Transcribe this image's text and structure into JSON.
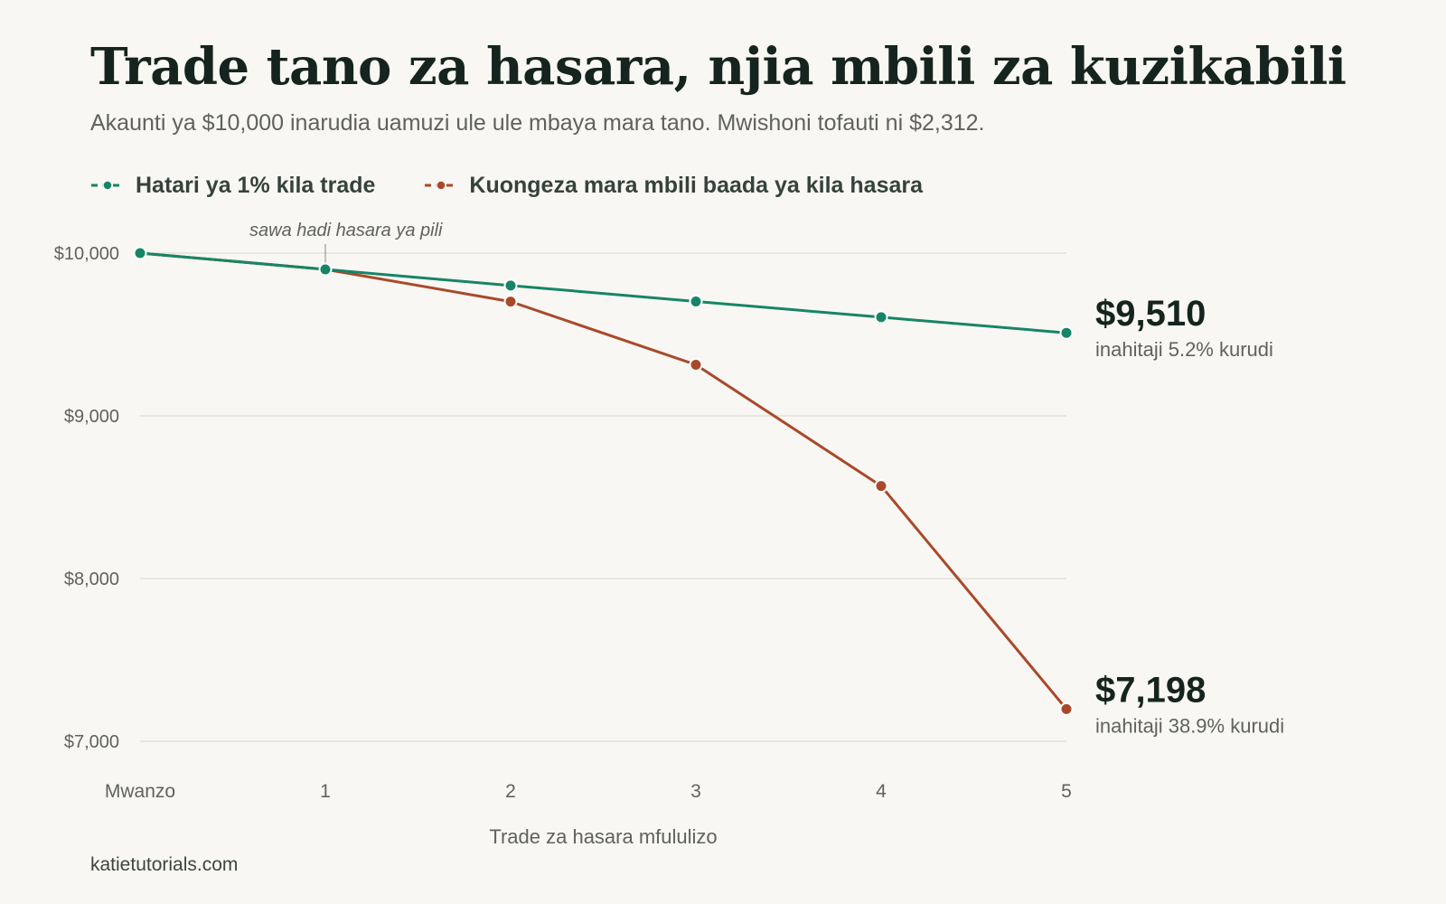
{
  "header": {
    "title": "Trade tano za hasara, njia mbili za kuzikabili",
    "subtitle": "Akaunti ya $10,000 inarudia uamuzi ule ule mbaya mara tano. Mwishoni tofauti ni $2,312."
  },
  "footer": {
    "source": "katietutorials.com"
  },
  "colors": {
    "fixed_risk": "#168566",
    "doubling": "#a9492a",
    "grid": "#e3e1dc",
    "text_muted": "#5f625e",
    "background": "#f9f7f3"
  },
  "chart_data": {
    "type": "line",
    "categories": [
      "Mwanzo",
      "1",
      "2",
      "3",
      "4",
      "5"
    ],
    "xlabel": "Trade za hasara mfululizo",
    "ylabel": "",
    "ylim": [
      7000,
      10000
    ],
    "yticks": [
      {
        "value": 10000,
        "label": "$10,000"
      },
      {
        "value": 9000,
        "label": "$9,000"
      },
      {
        "value": 8000,
        "label": "$8,000"
      },
      {
        "value": 7000,
        "label": "$7,000"
      }
    ],
    "grid": true,
    "legend_position": "top-left",
    "series": [
      {
        "key": "fixed_risk",
        "name": "Hatari ya 1% kila trade",
        "values": [
          10000,
          9900,
          9801,
          9703,
          9606,
          9510
        ],
        "end_value_label": "$9,510",
        "end_note": "inahitaji 5.2% kurudi"
      },
      {
        "key": "doubling",
        "name": "Kuongeza mara mbili baada ya kila hasara",
        "values": [
          10000,
          9900,
          9702,
          9314,
          8569,
          7198
        ],
        "end_value_label": "$7,198",
        "end_note": "inahitaji 38.9% kurudi"
      }
    ],
    "annotations": [
      {
        "text": "sawa hadi hasara ya pili",
        "x_index": 1
      }
    ]
  }
}
